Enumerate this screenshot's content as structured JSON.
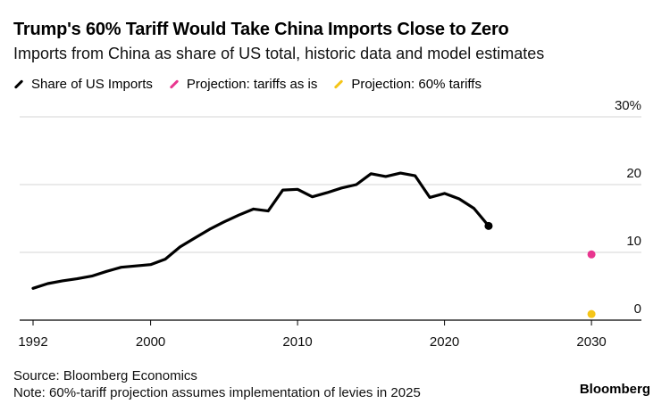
{
  "chart_data": {
    "type": "line",
    "title": "Trump's 60% Tariff Would Take China Imports Close to Zero",
    "subtitle": "Imports from China as share of US total, historic data and model estimates",
    "xlabel": "",
    "ylabel": "",
    "xlim": [
      1991,
      2034
    ],
    "ylim": [
      0,
      30
    ],
    "x_ticks": [
      1992,
      2000,
      2010,
      2020,
      2030
    ],
    "y_ticks": [
      0,
      10,
      20,
      30
    ],
    "y_tick_labels": [
      "0",
      "10",
      "20",
      "30%"
    ],
    "legend_position": "top-left",
    "series": [
      {
        "name": "Share of US Imports",
        "color": "#000000",
        "style": "line",
        "x": [
          1992,
          1993,
          1994,
          1995,
          1996,
          1997,
          1998,
          1999,
          2000,
          2001,
          2002,
          2003,
          2004,
          2005,
          2006,
          2007,
          2008,
          2009,
          2010,
          2011,
          2012,
          2013,
          2014,
          2015,
          2016,
          2017,
          2018,
          2019,
          2020,
          2021,
          2022,
          2023
        ],
        "values": [
          4.7,
          5.4,
          5.8,
          6.1,
          6.5,
          7.2,
          7.8,
          8.0,
          8.2,
          9.0,
          10.8,
          12.1,
          13.4,
          14.5,
          15.5,
          16.4,
          16.1,
          19.2,
          19.3,
          18.2,
          18.8,
          19.5,
          20.0,
          21.6,
          21.2,
          21.7,
          21.3,
          18.1,
          18.7,
          17.9,
          16.5,
          13.9
        ]
      },
      {
        "name": "Projection: tariffs as is",
        "color": "#e8368f",
        "style": "point",
        "x": [
          2030
        ],
        "values": [
          9.7
        ]
      },
      {
        "name": "Projection: 60% tariffs",
        "color": "#f5c518",
        "style": "point",
        "x": [
          2030
        ],
        "values": [
          0.9
        ]
      }
    ]
  },
  "footer": {
    "source": "Source: Bloomberg Economics",
    "note": "Note: 60%-tariff projection assumes implementation of levies in 2025"
  },
  "brand": "Bloomberg"
}
